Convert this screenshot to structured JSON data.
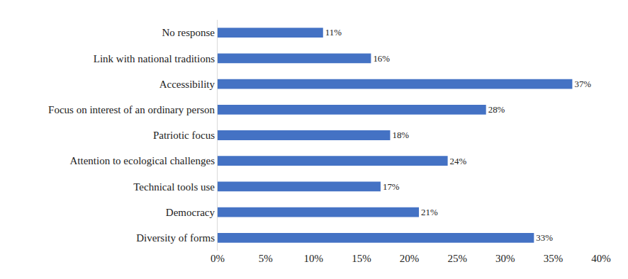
{
  "chart_data": {
    "type": "bar",
    "orientation": "horizontal",
    "categories": [
      "No response",
      "Link with national traditions",
      "Accessibility",
      "Focus on interest of an ordinary person",
      "Patriotic focus",
      "Attention to ecological challenges",
      "Technical tools use",
      "Democracy",
      "Diversity of forms"
    ],
    "values": [
      11,
      16,
      37,
      28,
      18,
      24,
      17,
      21,
      33
    ],
    "value_labels": [
      "11%",
      "16%",
      "37%",
      "28%",
      "18%",
      "24%",
      "17%",
      "21%",
      "33%"
    ],
    "color": "#4472c4",
    "xlim": [
      0,
      40
    ],
    "xticks": [
      {
        "value": 0,
        "label": "0%"
      },
      {
        "value": 5,
        "label": "5%"
      },
      {
        "value": 10,
        "label": "10%"
      },
      {
        "value": 15,
        "label": "15%"
      },
      {
        "value": 20,
        "label": "20%"
      },
      {
        "value": 25,
        "label": "25%"
      },
      {
        "value": 30,
        "label": "30%"
      },
      {
        "value": 35,
        "label": "35%"
      },
      {
        "value": 40,
        "label": "40%"
      }
    ],
    "grid": false,
    "data_labels": true
  }
}
